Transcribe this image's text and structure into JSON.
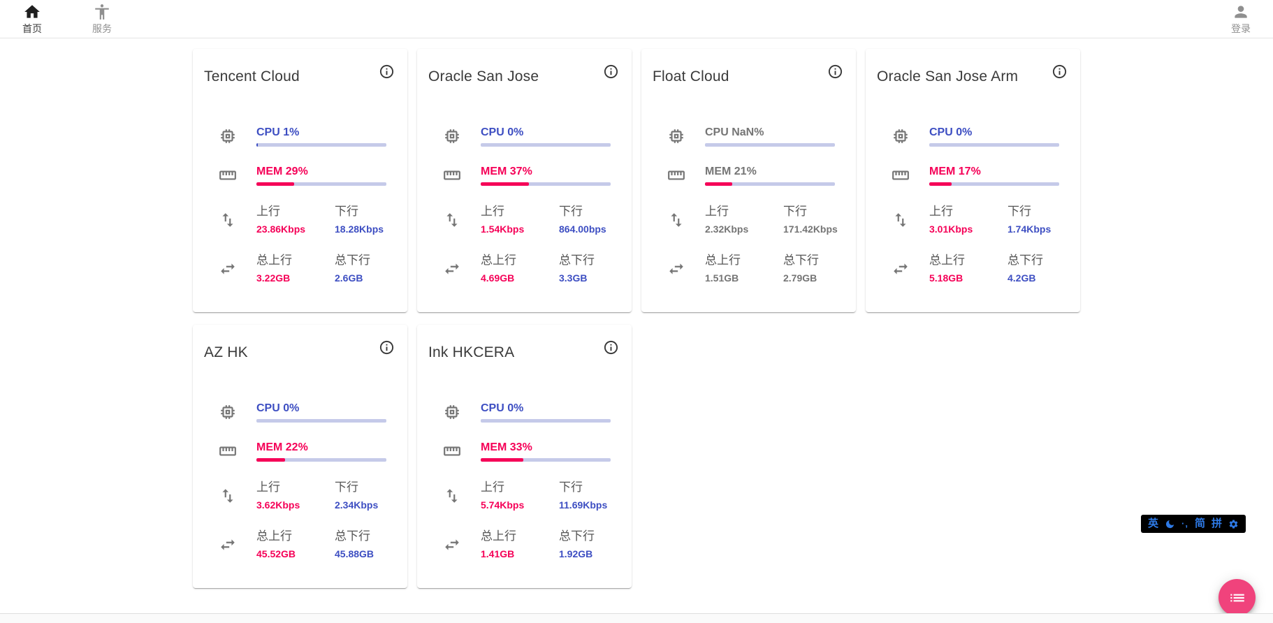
{
  "navbar": {
    "home": {
      "label": "首页",
      "icon": "home-icon",
      "active": true
    },
    "services": {
      "label": "服务",
      "icon": "accessibility-icon",
      "active": false
    },
    "login": {
      "label": "登录",
      "icon": "person-icon",
      "active": false
    }
  },
  "labels": {
    "upload": "上行",
    "download": "下行",
    "total_upload": "总上行",
    "total_download": "总下行"
  },
  "servers": [
    {
      "name": "Tencent Cloud",
      "cpu_label": "CPU 1%",
      "cpu_percent": 1,
      "mem_label": "MEM 29%",
      "mem_percent": 29,
      "state": "online",
      "upload": "23.86Kbps",
      "download": "18.28Kbps",
      "total_upload": "3.22GB",
      "total_download": "2.6GB"
    },
    {
      "name": "Oracle San Jose",
      "cpu_label": "CPU 0%",
      "cpu_percent": 0,
      "mem_label": "MEM 37%",
      "mem_percent": 37,
      "state": "online",
      "upload": "1.54Kbps",
      "download": "864.00bps",
      "total_upload": "4.69GB",
      "total_download": "3.3GB"
    },
    {
      "name": "Float Cloud",
      "cpu_label": "CPU NaN%",
      "cpu_percent": 0,
      "mem_label": "MEM 21%",
      "mem_percent": 21,
      "state": "stale",
      "upload": "2.32Kbps",
      "download": "171.42Kbps",
      "total_upload": "1.51GB",
      "total_download": "2.79GB"
    },
    {
      "name": "Oracle San Jose Arm",
      "cpu_label": "CPU 0%",
      "cpu_percent": 0,
      "mem_label": "MEM 17%",
      "mem_percent": 17,
      "state": "online",
      "upload": "3.01Kbps",
      "download": "1.74Kbps",
      "total_upload": "5.18GB",
      "total_download": "4.2GB"
    },
    {
      "name": "AZ HK",
      "cpu_label": "CPU 0%",
      "cpu_percent": 0,
      "mem_label": "MEM 22%",
      "mem_percent": 22,
      "state": "online",
      "upload": "3.62Kbps",
      "download": "2.34Kbps",
      "total_upload": "45.52GB",
      "total_download": "45.88GB"
    },
    {
      "name": "Ink HKCERA",
      "cpu_label": "CPU 0%",
      "cpu_percent": 0,
      "mem_label": "MEM 33%",
      "mem_percent": 33,
      "state": "online",
      "upload": "5.74Kbps",
      "download": "11.69Kbps",
      "total_upload": "1.41GB",
      "total_download": "1.92GB"
    }
  ],
  "ime_toolbar": {
    "lang": "英",
    "moon_icon": "moon-icon",
    "punct": "·,",
    "simplified": "简",
    "pinyin": "拼",
    "settings_icon": "gear-icon"
  },
  "fab": {
    "icon": "list-icon"
  },
  "colors": {
    "accent_blue": "#3d4ec2",
    "accent_pink": "#f50057",
    "bar_track": "#c5cae9",
    "muted_gray": "#757575",
    "fab_pink": "#f0437c",
    "ime_blue": "#2e7ae6"
  }
}
